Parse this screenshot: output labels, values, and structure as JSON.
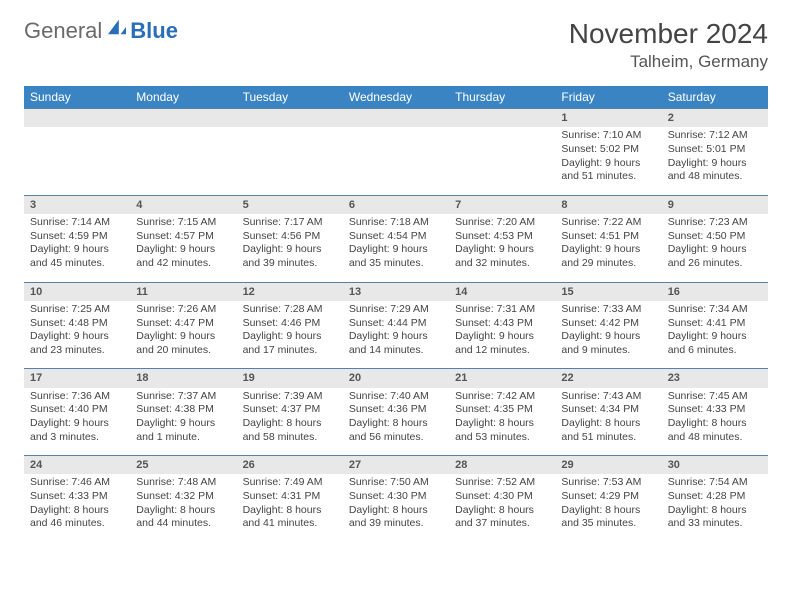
{
  "logo": {
    "text1": "General",
    "text2": "Blue"
  },
  "title": "November 2024",
  "location": "Talheim, Germany",
  "colors": {
    "header_bg": "#3b84c4",
    "header_text": "#ffffff",
    "daynum_bg": "#e8e8e8",
    "row_border": "#5a7fa0",
    "logo_gray": "#6a6a6a",
    "logo_blue": "#2a6db8"
  },
  "weekdays": [
    "Sunday",
    "Monday",
    "Tuesday",
    "Wednesday",
    "Thursday",
    "Friday",
    "Saturday"
  ],
  "weeks": [
    [
      null,
      null,
      null,
      null,
      null,
      {
        "n": "1",
        "sr": "7:10 AM",
        "ss": "5:02 PM",
        "dl": "9 hours and 51 minutes."
      },
      {
        "n": "2",
        "sr": "7:12 AM",
        "ss": "5:01 PM",
        "dl": "9 hours and 48 minutes."
      }
    ],
    [
      {
        "n": "3",
        "sr": "7:14 AM",
        "ss": "4:59 PM",
        "dl": "9 hours and 45 minutes."
      },
      {
        "n": "4",
        "sr": "7:15 AM",
        "ss": "4:57 PM",
        "dl": "9 hours and 42 minutes."
      },
      {
        "n": "5",
        "sr": "7:17 AM",
        "ss": "4:56 PM",
        "dl": "9 hours and 39 minutes."
      },
      {
        "n": "6",
        "sr": "7:18 AM",
        "ss": "4:54 PM",
        "dl": "9 hours and 35 minutes."
      },
      {
        "n": "7",
        "sr": "7:20 AM",
        "ss": "4:53 PM",
        "dl": "9 hours and 32 minutes."
      },
      {
        "n": "8",
        "sr": "7:22 AM",
        "ss": "4:51 PM",
        "dl": "9 hours and 29 minutes."
      },
      {
        "n": "9",
        "sr": "7:23 AM",
        "ss": "4:50 PM",
        "dl": "9 hours and 26 minutes."
      }
    ],
    [
      {
        "n": "10",
        "sr": "7:25 AM",
        "ss": "4:48 PM",
        "dl": "9 hours and 23 minutes."
      },
      {
        "n": "11",
        "sr": "7:26 AM",
        "ss": "4:47 PM",
        "dl": "9 hours and 20 minutes."
      },
      {
        "n": "12",
        "sr": "7:28 AM",
        "ss": "4:46 PM",
        "dl": "9 hours and 17 minutes."
      },
      {
        "n": "13",
        "sr": "7:29 AM",
        "ss": "4:44 PM",
        "dl": "9 hours and 14 minutes."
      },
      {
        "n": "14",
        "sr": "7:31 AM",
        "ss": "4:43 PM",
        "dl": "9 hours and 12 minutes."
      },
      {
        "n": "15",
        "sr": "7:33 AM",
        "ss": "4:42 PM",
        "dl": "9 hours and 9 minutes."
      },
      {
        "n": "16",
        "sr": "7:34 AM",
        "ss": "4:41 PM",
        "dl": "9 hours and 6 minutes."
      }
    ],
    [
      {
        "n": "17",
        "sr": "7:36 AM",
        "ss": "4:40 PM",
        "dl": "9 hours and 3 minutes."
      },
      {
        "n": "18",
        "sr": "7:37 AM",
        "ss": "4:38 PM",
        "dl": "9 hours and 1 minute."
      },
      {
        "n": "19",
        "sr": "7:39 AM",
        "ss": "4:37 PM",
        "dl": "8 hours and 58 minutes."
      },
      {
        "n": "20",
        "sr": "7:40 AM",
        "ss": "4:36 PM",
        "dl": "8 hours and 56 minutes."
      },
      {
        "n": "21",
        "sr": "7:42 AM",
        "ss": "4:35 PM",
        "dl": "8 hours and 53 minutes."
      },
      {
        "n": "22",
        "sr": "7:43 AM",
        "ss": "4:34 PM",
        "dl": "8 hours and 51 minutes."
      },
      {
        "n": "23",
        "sr": "7:45 AM",
        "ss": "4:33 PM",
        "dl": "8 hours and 48 minutes."
      }
    ],
    [
      {
        "n": "24",
        "sr": "7:46 AM",
        "ss": "4:33 PM",
        "dl": "8 hours and 46 minutes."
      },
      {
        "n": "25",
        "sr": "7:48 AM",
        "ss": "4:32 PM",
        "dl": "8 hours and 44 minutes."
      },
      {
        "n": "26",
        "sr": "7:49 AM",
        "ss": "4:31 PM",
        "dl": "8 hours and 41 minutes."
      },
      {
        "n": "27",
        "sr": "7:50 AM",
        "ss": "4:30 PM",
        "dl": "8 hours and 39 minutes."
      },
      {
        "n": "28",
        "sr": "7:52 AM",
        "ss": "4:30 PM",
        "dl": "8 hours and 37 minutes."
      },
      {
        "n": "29",
        "sr": "7:53 AM",
        "ss": "4:29 PM",
        "dl": "8 hours and 35 minutes."
      },
      {
        "n": "30",
        "sr": "7:54 AM",
        "ss": "4:28 PM",
        "dl": "8 hours and 33 minutes."
      }
    ]
  ],
  "labels": {
    "sunrise": "Sunrise: ",
    "sunset": "Sunset: ",
    "daylight": "Daylight: "
  }
}
